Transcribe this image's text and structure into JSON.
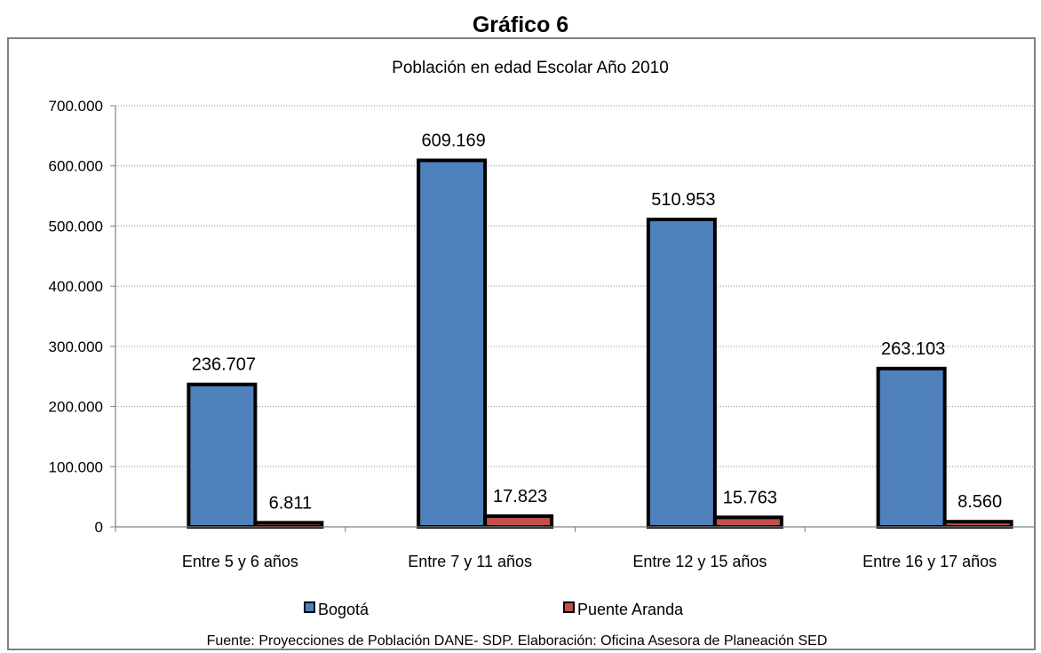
{
  "page": {
    "heading": "Gráfico 6"
  },
  "chart_data": {
    "type": "bar",
    "title": "Población en edad Escolar Año 2010",
    "categories": [
      "Entre 5 y 6 años",
      "Entre 7 y 11 años",
      "Entre 12 y 15 años",
      "Entre 16 y 17 años"
    ],
    "series": [
      {
        "name": "Bogotá",
        "values": [
          236707,
          609169,
          510953,
          263103
        ],
        "color": "#4f81bd"
      },
      {
        "name": "Puente Aranda",
        "values": [
          6811,
          17823,
          15763,
          8560
        ],
        "color": "#c0504d"
      }
    ],
    "data_labels": [
      [
        "236.707",
        "609.169",
        "510.953",
        "263.103"
      ],
      [
        "6.811",
        "17.823",
        "15.763",
        "8.560"
      ]
    ],
    "ylim": [
      0,
      700000
    ],
    "yticks": [
      0,
      100000,
      200000,
      300000,
      400000,
      500000,
      600000,
      700000
    ],
    "ytick_labels": [
      "0",
      "100.000",
      "200.000",
      "300.000",
      "400.000",
      "500.000",
      "600.000",
      "700.000"
    ],
    "xlabel": "",
    "ylabel": "",
    "grid": true,
    "legend_position": "bottom",
    "source": "Fuente: Proyecciones de Población DANE- SDP. Elaboración: Oficina Asesora de Planeación SED"
  }
}
